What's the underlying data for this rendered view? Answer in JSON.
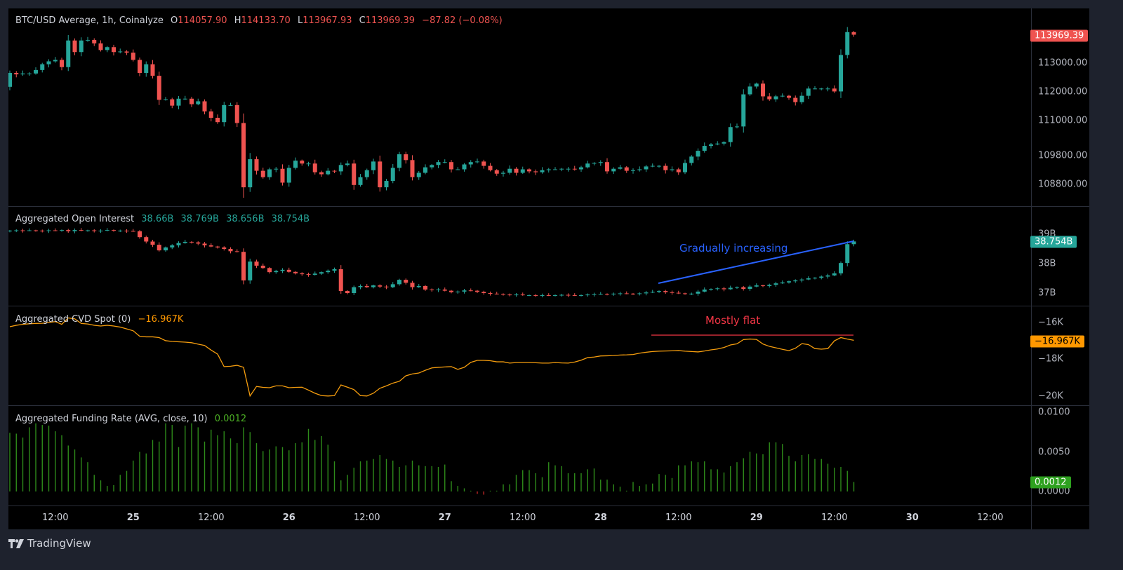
{
  "panes": {
    "price": {
      "title": "BTC/USD Average, 1h, Coinalyze",
      "ohlc": {
        "o_prefix": "O",
        "o": "114057.90",
        "h_prefix": "H",
        "h": "114133.70",
        "l_prefix": "L",
        "l": "113967.93",
        "c_prefix": "C",
        "c": "113969.39",
        "change": "−87.82 (−0.08%)"
      },
      "last_badge": "113969.39",
      "ticks": [
        {
          "value": 113000,
          "label": "113000.00"
        },
        {
          "value": 112000,
          "label": "112000.00"
        },
        {
          "value": 111000,
          "label": "111000.00"
        },
        {
          "value": 109800,
          "label": "109800.00"
        },
        {
          "value": 108800,
          "label": "108800.00"
        }
      ]
    },
    "oi": {
      "title": "Aggregated Open Interest",
      "values": [
        "38.66B",
        "38.769B",
        "38.656B",
        "38.754B"
      ],
      "last_badge": "38.754B",
      "ticks": [
        {
          "value": 39,
          "label": "39B"
        },
        {
          "value": 38,
          "label": "38B"
        },
        {
          "value": 37,
          "label": "37B"
        }
      ],
      "annotation": "Gradually increasing"
    },
    "cvd": {
      "title": "Aggregated CVD Spot (0)",
      "value": "−16.967K",
      "last_badge": "−16.967K",
      "ticks": [
        {
          "value": -16,
          "label": "−16K"
        },
        {
          "value": -18,
          "label": "−18K"
        },
        {
          "value": -20,
          "label": "−20K"
        }
      ],
      "annotation": "Mostly flat"
    },
    "funding": {
      "title": "Aggregated Funding Rate (AVG, close, 10)",
      "value": "0.0012",
      "last_badge": "0.0012",
      "ticks": [
        {
          "value": 0.01,
          "label": "0.0100"
        },
        {
          "value": 0.005,
          "label": "0.0050"
        },
        {
          "value": 0,
          "label": "0.0000"
        }
      ]
    }
  },
  "time_axis": [
    "12:00",
    "25",
    "12:00",
    "26",
    "12:00",
    "27",
    "12:00",
    "28",
    "12:00",
    "29",
    "12:00",
    "30",
    "12:00"
  ],
  "branding": "TradingView",
  "colors": {
    "up": "#26a69a",
    "down": "#ef5350",
    "cvd": "#f59d0e",
    "funding": "#2e8b1a",
    "funding_neg": "#c62828",
    "annotation_blue": "#2962ff",
    "annotation_red": "#f23645",
    "badge_oi": "#26a69a",
    "badge_cvd": "#ff9800",
    "badge_funding": "#2ea11f"
  },
  "chart_data": [
    {
      "type": "candlestick",
      "title": "BTC/USD Average, 1h, Coinalyze",
      "interval": "1h",
      "close": [
        112650,
        112600,
        112630,
        112630,
        112750,
        112950,
        113050,
        113100,
        112850,
        113770,
        113370,
        113770,
        113790,
        113670,
        113440,
        113540,
        113370,
        113390,
        113350,
        113100,
        112650,
        112950,
        112550,
        111720,
        111740,
        111520,
        111760,
        111760,
        111570,
        111670,
        111320,
        111100,
        110950,
        111540,
        111540,
        110920,
        108700,
        109670,
        109270,
        109050,
        109320,
        109340,
        108860,
        109370,
        109620,
        109520,
        109520,
        109220,
        109150,
        109270,
        109250,
        109470,
        109520,
        108780,
        109050,
        109290,
        109590,
        108700,
        108920,
        109370,
        109840,
        109640,
        109050,
        109200,
        109390,
        109470,
        109570,
        109570,
        109320,
        109320,
        109490,
        109570,
        109590,
        109440,
        109290,
        109170,
        109200,
        109340,
        109200,
        109320,
        109250,
        109220,
        109290,
        109320,
        109320,
        109340,
        109340,
        109320,
        109390,
        109520,
        109540,
        109570,
        109250,
        109340,
        109390,
        109270,
        109290,
        109320,
        109420,
        109440,
        109440,
        109290,
        109320,
        109220,
        109540,
        109760,
        109960,
        110130,
        110180,
        110210,
        110260,
        110780,
        110800,
        111910,
        112180,
        112280,
        111840,
        111740,
        111840,
        111860,
        111790,
        111640,
        111860,
        112110,
        112110,
        112110,
        112110,
        112010,
        113270,
        114060,
        113969.39
      ],
      "ylim": [
        108600,
        114300
      ]
    },
    {
      "type": "candlestick",
      "title": "Aggregated Open Interest",
      "unit": "B",
      "close": [
        39.12,
        39.13,
        39.12,
        39.13,
        39.12,
        39.11,
        39.13,
        39.12,
        39.14,
        39.1,
        39.14,
        39.12,
        39.13,
        39.11,
        39.12,
        39.14,
        39.12,
        39.12,
        39.11,
        39.1,
        38.9,
        38.75,
        38.64,
        38.45,
        38.55,
        38.62,
        38.7,
        38.74,
        38.72,
        38.68,
        38.62,
        38.58,
        38.55,
        38.5,
        38.42,
        38.4,
        37.43,
        38.07,
        37.93,
        37.85,
        37.71,
        37.75,
        37.79,
        37.72,
        37.67,
        37.64,
        37.62,
        37.66,
        37.71,
        37.76,
        37.81,
        37.07,
        37.0,
        37.2,
        37.24,
        37.2,
        37.26,
        37.22,
        37.2,
        37.3,
        37.45,
        37.35,
        37.2,
        37.24,
        37.12,
        37.1,
        37.12,
        37.08,
        37.03,
        37.05,
        37.09,
        37.08,
        37.04,
        37.0,
        36.98,
        36.97,
        36.95,
        36.94,
        36.95,
        36.93,
        36.93,
        36.92,
        36.93,
        36.92,
        36.93,
        36.94,
        36.93,
        36.92,
        36.93,
        36.95,
        36.96,
        36.97,
        36.96,
        36.98,
        36.99,
        36.98,
        36.97,
        36.99,
        37.02,
        37.04,
        37.07,
        37.03,
        37.01,
        36.99,
        36.98,
        36.98,
        37.05,
        37.12,
        37.14,
        37.16,
        37.13,
        37.18,
        37.2,
        37.14,
        37.22,
        37.26,
        37.24,
        37.28,
        37.33,
        37.36,
        37.4,
        37.43,
        37.46,
        37.5,
        37.52,
        37.56,
        37.6,
        37.67,
        38.02,
        38.66,
        38.754
      ]
    },
    {
      "type": "line",
      "title": "Aggregated CVD Spot (0)",
      "unit": "K",
      "values": [
        -16.23,
        -16.15,
        -16.1,
        -16.07,
        -16.05,
        -16.04,
        -16.0,
        -15.95,
        -16.1,
        -15.75,
        -15.8,
        -16.05,
        -16.08,
        -16.15,
        -16.19,
        -16.15,
        -16.19,
        -16.25,
        -16.35,
        -16.45,
        -16.75,
        -16.78,
        -16.78,
        -16.82,
        -16.99,
        -17.03,
        -17.05,
        -17.07,
        -17.1,
        -17.18,
        -17.25,
        -17.5,
        -17.72,
        -18.4,
        -18.38,
        -18.33,
        -18.44,
        -20.0,
        -19.48,
        -19.53,
        -19.55,
        -19.45,
        -19.45,
        -19.55,
        -19.53,
        -19.52,
        -19.68,
        -19.85,
        -19.98,
        -20.0,
        -19.98,
        -19.4,
        -19.52,
        -19.65,
        -19.98,
        -20.0,
        -19.85,
        -19.58,
        -19.45,
        -19.3,
        -19.2,
        -18.9,
        -18.8,
        -18.75,
        -18.6,
        -18.47,
        -18.44,
        -18.42,
        -18.4,
        -18.55,
        -18.44,
        -18.17,
        -18.06,
        -18.06,
        -18.08,
        -18.14,
        -18.14,
        -18.21,
        -18.18,
        -18.18,
        -18.18,
        -18.19,
        -18.21,
        -18.21,
        -18.18,
        -18.2,
        -18.21,
        -18.15,
        -18.05,
        -17.91,
        -17.88,
        -17.82,
        -17.81,
        -17.8,
        -17.77,
        -17.76,
        -17.74,
        -17.67,
        -17.62,
        -17.58,
        -17.56,
        -17.55,
        -17.54,
        -17.53,
        -17.56,
        -17.58,
        -17.6,
        -17.55,
        -17.49,
        -17.44,
        -17.36,
        -17.22,
        -17.16,
        -16.93,
        -16.9,
        -16.92,
        -17.17,
        -17.3,
        -17.38,
        -17.46,
        -17.53,
        -17.4,
        -17.15,
        -17.2,
        -17.42,
        -17.45,
        -17.42,
        -17.0,
        -16.82,
        -16.9,
        -16.967
      ]
    },
    {
      "type": "bar",
      "title": "Aggregated Funding Rate (AVG, close, 10)",
      "values": [
        0.0074,
        0.0073,
        0.0068,
        0.0081,
        0.0086,
        0.0084,
        0.0083,
        0.0076,
        0.0071,
        0.0058,
        0.0053,
        0.0043,
        0.0037,
        0.0021,
        0.0014,
        0.0007,
        0.0008,
        0.0021,
        0.0026,
        0.0039,
        0.005,
        0.0048,
        0.0065,
        0.0063,
        0.0086,
        0.0084,
        0.0056,
        0.0083,
        0.0086,
        0.0081,
        0.0063,
        0.0078,
        0.0071,
        0.0076,
        0.0067,
        0.0061,
        0.0081,
        0.0075,
        0.0061,
        0.0051,
        0.0053,
        0.0057,
        0.0056,
        0.0052,
        0.0061,
        0.0062,
        0.0079,
        0.0065,
        0.007,
        0.0059,
        0.0038,
        0.0014,
        0.0021,
        0.003,
        0.0038,
        0.0039,
        0.0041,
        0.0046,
        0.0041,
        0.0039,
        0.0031,
        0.0033,
        0.0039,
        0.0033,
        0.0032,
        0.0032,
        0.0031,
        0.0034,
        0.0013,
        0.0007,
        0.0004,
        0.0001,
        -0.0003,
        -0.0004,
        0.0001,
        0.0001,
        0.0009,
        0.0009,
        0.0021,
        0.0027,
        0.0027,
        0.0023,
        0.0018,
        0.0037,
        0.0033,
        0.0032,
        0.0023,
        0.0023,
        0.0023,
        0.0028,
        0.0029,
        0.0015,
        0.0015,
        0.0009,
        0.0006,
        0.0001,
        0.0012,
        0.0007,
        0.0009,
        0.001,
        0.0022,
        0.0021,
        0.0017,
        0.0033,
        0.0033,
        0.0038,
        0.0037,
        0.0038,
        0.0028,
        0.0028,
        0.0024,
        0.0032,
        0.0037,
        0.0042,
        0.005,
        0.0048,
        0.0047,
        0.0062,
        0.0062,
        0.006,
        0.0045,
        0.0038,
        0.0046,
        0.0047,
        0.0041,
        0.0041,
        0.0035,
        0.003,
        0.0031,
        0.0026,
        0.0012
      ],
      "ylim": [
        -0.0005,
        0.0105
      ]
    }
  ]
}
